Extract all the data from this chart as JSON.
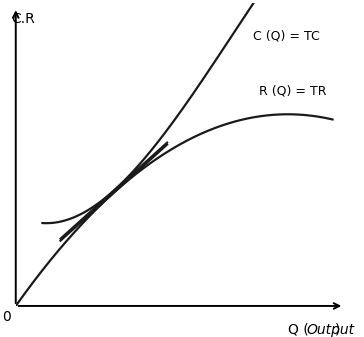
{
  "ylabel": "C.R",
  "xlabel_q": "Q (",
  "xlabel_out": "Output",
  "tc_label": "C (Q) = TC",
  "tr_label": "R (Q) = TR",
  "origin_label": "0",
  "background_color": "#ffffff",
  "curve_color": "#1a1a1a",
  "dashed_color": "#999999",
  "figsize": [
    3.64,
    3.37
  ],
  "dpi": 100,
  "xlim": [
    0,
    10
  ],
  "ylim": [
    0,
    10
  ]
}
